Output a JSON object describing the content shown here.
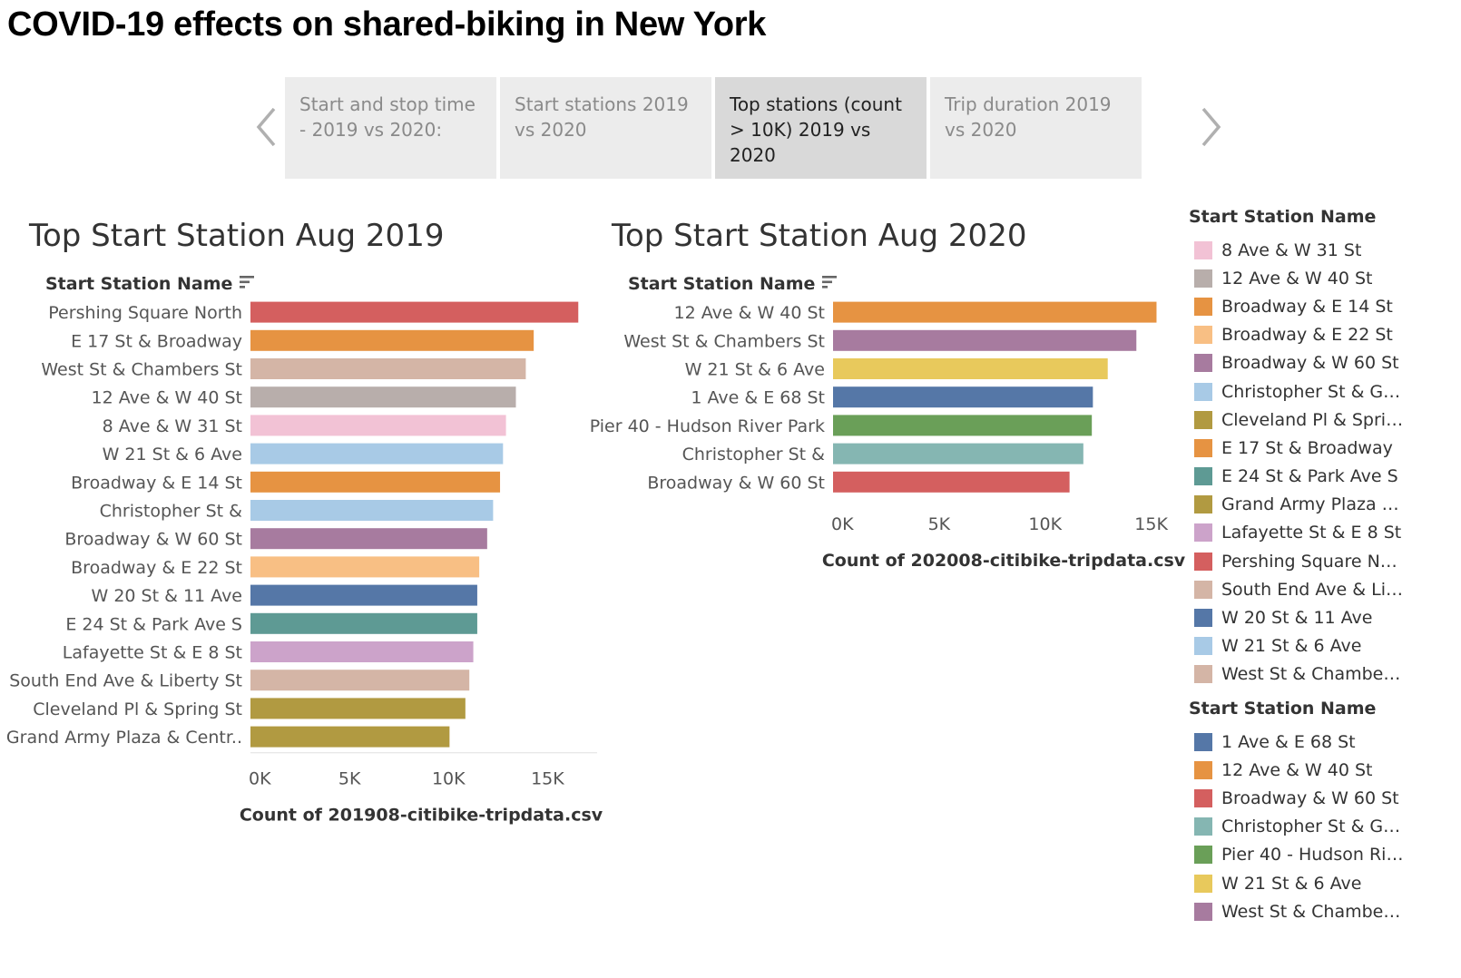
{
  "page": {
    "title": "COVID-19 effects on shared-biking in New York"
  },
  "story": {
    "prev_icon": "chevron-left-icon",
    "next_icon": "chevron-right-icon",
    "points": [
      {
        "label": "Start and stop time - 2019 vs 2020:",
        "active": false
      },
      {
        "label": "Start stations 2019 vs 2020",
        "active": false
      },
      {
        "label": "Top stations (count > 10K) 2019 vs 2020",
        "active": true
      },
      {
        "label": "Trip duration 2019 vs 2020",
        "active": false
      }
    ]
  },
  "chart_data": [
    {
      "type": "bar",
      "orientation": "horizontal",
      "title": "Top Start Station Aug 2019",
      "ylabel": "Start Station Name",
      "xlabel": "Count of 201908-citibike-tripdata.csv",
      "xlim": [
        0,
        17500
      ],
      "xticks": [
        0,
        5000,
        10000,
        15000
      ],
      "xtick_labels": [
        "0K",
        "5K",
        "10K",
        "15K"
      ],
      "categories": [
        "Pershing Square North",
        "E 17 St & Broadway",
        "West St & Chambers St",
        "12 Ave & W 40 St",
        "8 Ave & W 31 St",
        "W 21 St & 6 Ave",
        "Broadway & E 14 St",
        "Christopher St &",
        "Broadway & W 60 St",
        "Broadway & E 22 St",
        "W 20 St & 11 Ave",
        "E 24 St & Park Ave S",
        "Lafayette St & E 8 St",
        "South End Ave & Liberty St",
        "Cleveland Pl & Spring St",
        "Grand Army Plaza & Centr.."
      ],
      "values": [
        16550,
        14300,
        13900,
        13400,
        12900,
        12750,
        12600,
        12250,
        11950,
        11550,
        11450,
        11450,
        11250,
        11050,
        10850,
        10050
      ],
      "colors": [
        "#d45f5f",
        "#e69342",
        "#d4b5a6",
        "#b8aeab",
        "#f2c2d5",
        "#a8cae6",
        "#e69342",
        "#a8cae6",
        "#a77b9f",
        "#f8bf84",
        "#5577a7",
        "#5e9a94",
        "#cca3ca",
        "#d4b5a6",
        "#b19a41",
        "#b19a41"
      ]
    },
    {
      "type": "bar",
      "orientation": "horizontal",
      "title": "Top Start Station Aug 2020",
      "ylabel": "Start Station Name",
      "xlabel": "Count of 202008-citibike-tripdata.csv",
      "xlim": [
        0,
        16000
      ],
      "xticks": [
        0,
        5000,
        10000,
        15000
      ],
      "xtick_labels": [
        "0K",
        "5K",
        "10K",
        "15K"
      ],
      "categories": [
        "12 Ave & W 40 St",
        "West St & Chambers St",
        "W 21 St & 6 Ave",
        "1 Ave & E 68 St",
        "Pier 40 - Hudson River Park",
        "Christopher St &",
        "Broadway & W 60 St"
      ],
      "values": [
        15250,
        14300,
        12950,
        12250,
        12200,
        11800,
        11150
      ],
      "colors": [
        "#e69342",
        "#a77b9f",
        "#e8c95c",
        "#5577a7",
        "#6a9f58",
        "#85b6b2",
        "#d45f5f"
      ]
    }
  ],
  "legends": [
    {
      "title": "Start Station Name",
      "items": [
        {
          "label": "8 Ave & W 31 St",
          "color": "#f2c2d5"
        },
        {
          "label": "12 Ave & W 40 St",
          "color": "#b8aeab"
        },
        {
          "label": "Broadway & E 14 St",
          "color": "#e69342"
        },
        {
          "label": "Broadway & E 22 St",
          "color": "#f8bf84"
        },
        {
          "label": "Broadway & W 60 St",
          "color": "#a77b9f"
        },
        {
          "label": "Christopher St & Gre...",
          "color": "#a8cae6"
        },
        {
          "label": "Cleveland Pl & Sprin...",
          "color": "#b19a41"
        },
        {
          "label": "E 17 St & Broadway",
          "color": "#e69342"
        },
        {
          "label": "E 24 St & Park Ave S",
          "color": "#5e9a94"
        },
        {
          "label": "Grand Army Plaza & ...",
          "color": "#b19a41"
        },
        {
          "label": "Lafayette St & E 8 St",
          "color": "#cca3ca"
        },
        {
          "label": "Pershing Square North",
          "color": "#d45f5f"
        },
        {
          "label": "South End Ave & Lib...",
          "color": "#d4b5a6"
        },
        {
          "label": "W 20 St & 11 Ave",
          "color": "#5577a7"
        },
        {
          "label": "W 21 St & 6 Ave",
          "color": "#a8cae6"
        },
        {
          "label": "West St & Chambers St",
          "color": "#d4b5a6"
        }
      ]
    },
    {
      "title": "Start Station Name",
      "items": [
        {
          "label": "1 Ave & E 68 St",
          "color": "#5577a7"
        },
        {
          "label": "12 Ave & W 40 St",
          "color": "#e69342"
        },
        {
          "label": "Broadway & W 60 St",
          "color": "#d45f5f"
        },
        {
          "label": "Christopher St & Gre...",
          "color": "#85b6b2"
        },
        {
          "label": "Pier 40 - Hudson Riv...",
          "color": "#6a9f58"
        },
        {
          "label": "W 21 St & 6 Ave",
          "color": "#e8c95c"
        },
        {
          "label": "West St & Chambers St",
          "color": "#a77b9f"
        }
      ]
    }
  ]
}
